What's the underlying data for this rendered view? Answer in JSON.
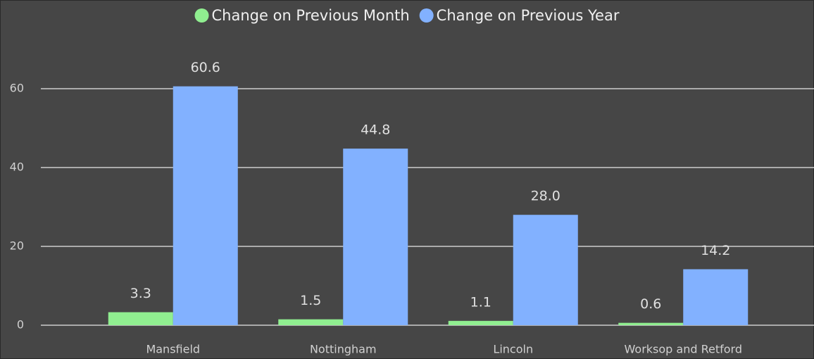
{
  "chart_data": {
    "type": "bar",
    "categories": [
      "Mansfield",
      "Nottingham",
      "Lincoln",
      "Worksop and Retford"
    ],
    "series": [
      {
        "name": "Change on Previous Month",
        "color": "#90ee90",
        "values": [
          3.3,
          1.5,
          1.1,
          0.6
        ]
      },
      {
        "name": "Change on Previous Year",
        "color": "#82b1ff",
        "values": [
          60.6,
          44.8,
          28.0,
          14.2
        ],
        "value_labels": [
          "60.6",
          "44.8",
          "28.0",
          "14.2"
        ]
      }
    ],
    "ylim": [
      0,
      70
    ],
    "yticks": [
      0,
      20,
      40,
      60
    ],
    "grid": true,
    "legend": "top"
  }
}
